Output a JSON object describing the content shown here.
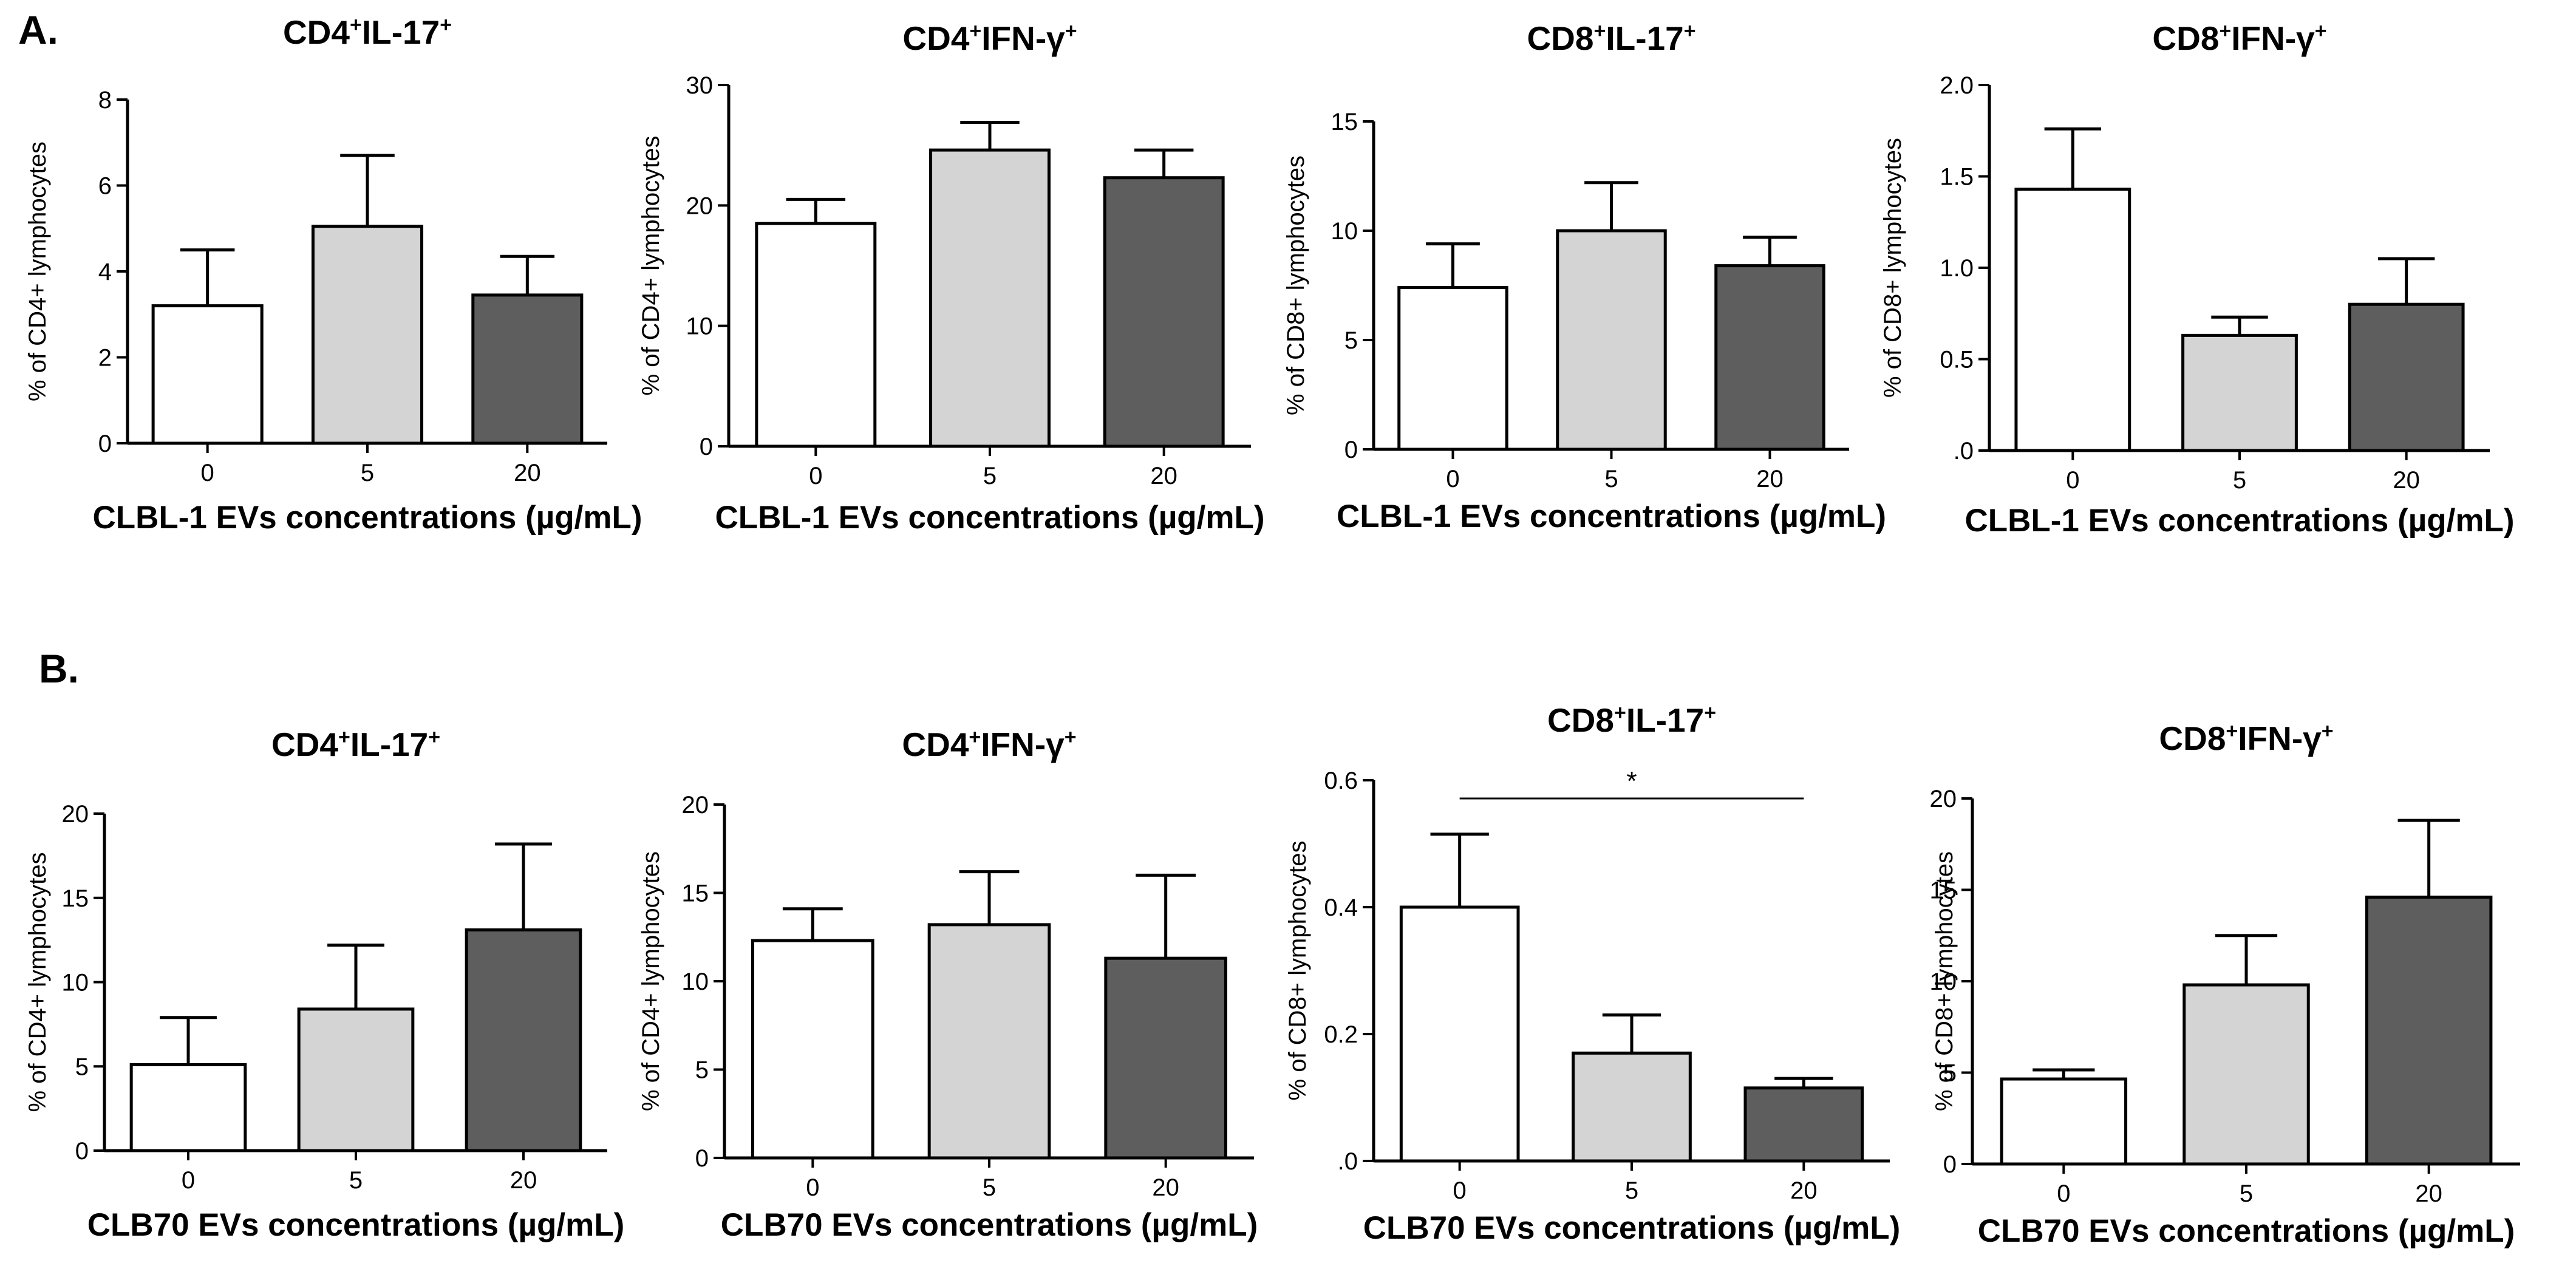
{
  "panels": [
    {
      "letter": "A."
    },
    {
      "letter": "B."
    }
  ],
  "chart_data": [
    {
      "type": "bar",
      "title": "CD4⁺IL-17⁺",
      "title_main": "CD4",
      "title_sup1": "+",
      "title_mid": "IL-17",
      "title_sup2": "+",
      "title_tail": "",
      "xlabel": "CLBL-1 EVs concentrations (µg/mL)",
      "ylabel": "% of CD4+ lymphocytes",
      "categories": [
        "0",
        "5",
        "20"
      ],
      "values": [
        3.2,
        5.05,
        3.45
      ],
      "errors": [
        1.3,
        1.65,
        0.9
      ],
      "ylim": [
        0,
        8
      ],
      "yticks": [
        "0",
        "2",
        "4",
        "6",
        "8"
      ],
      "bar_colors": [
        "#ffffff",
        "#d4d4d4",
        "#5e5e5e"
      ]
    },
    {
      "type": "bar",
      "title": "CD4⁺IFN-γ⁺",
      "title_main": "CD4",
      "title_sup1": "+",
      "title_mid": "IFN-γ",
      "title_sup2": "+",
      "title_tail": "",
      "xlabel": "CLBL-1 EVs concentrations (µg/mL)",
      "ylabel": "% of CD4+ lymphocytes",
      "categories": [
        "0",
        "5",
        "20"
      ],
      "values": [
        18.5,
        24.6,
        22.3
      ],
      "errors": [
        2.0,
        2.3,
        2.3
      ],
      "ylim": [
        0,
        30
      ],
      "yticks": [
        "0",
        "10",
        "20",
        "30"
      ],
      "bar_colors": [
        "#ffffff",
        "#d4d4d4",
        "#5e5e5e"
      ]
    },
    {
      "type": "bar",
      "title": "CD8⁺IL-17⁺",
      "title_main": "CD8",
      "title_sup1": "+",
      "title_mid": "IL-17",
      "title_sup2": "+",
      "title_tail": "",
      "xlabel": "CLBL-1 EVs concentrations (µg/mL)",
      "ylabel": "% of CD8+ lymphocytes",
      "categories": [
        "0",
        "5",
        "20"
      ],
      "values": [
        7.4,
        10.0,
        8.4
      ],
      "errors": [
        2.0,
        2.2,
        1.3
      ],
      "ylim": [
        0,
        15
      ],
      "yticks": [
        "0",
        "5",
        "10",
        "15"
      ],
      "bar_colors": [
        "#ffffff",
        "#d4d4d4",
        "#5e5e5e"
      ]
    },
    {
      "type": "bar",
      "title": "CD8⁺IFN-γ⁺",
      "title_main": "CD8",
      "title_sup1": "+",
      "title_mid": "IFN-γ",
      "title_sup2": "+",
      "title_tail": "",
      "xlabel": "CLBL-1 EVs concentrations (µg/mL)",
      "ylabel": "% of CD8+ lymphocytes",
      "categories": [
        "0",
        "5",
        "20"
      ],
      "values": [
        1.43,
        0.63,
        0.8
      ],
      "errors": [
        0.33,
        0.1,
        0.25
      ],
      "ylim": [
        0,
        2.0
      ],
      "yticks": [
        ".0",
        "0.5",
        "1.0",
        "1.5",
        "2.0"
      ],
      "bar_colors": [
        "#ffffff",
        "#d4d4d4",
        "#5e5e5e"
      ]
    },
    {
      "type": "bar",
      "title": "CD4⁺IL-17⁺",
      "title_main": "CD4",
      "title_sup1": "+",
      "title_mid": "IL-17",
      "title_sup2": "+",
      "title_tail": "",
      "xlabel": "CLB70 EVs concentrations (µg/mL)",
      "ylabel": "% of CD4+ lymphocytes",
      "categories": [
        "0",
        "5",
        "20"
      ],
      "values": [
        5.1,
        8.4,
        13.1
      ],
      "errors": [
        2.8,
        3.8,
        5.1
      ],
      "ylim": [
        0,
        20
      ],
      "yticks": [
        "0",
        "5",
        "10",
        "15",
        "20"
      ],
      "bar_colors": [
        "#ffffff",
        "#d4d4d4",
        "#5e5e5e"
      ]
    },
    {
      "type": "bar",
      "title": "CD4⁺IFN-γ⁺",
      "title_main": "CD4",
      "title_sup1": "+",
      "title_mid": "IFN-γ",
      "title_sup2": "+",
      "title_tail": "",
      "xlabel": "CLB70 EVs concentrations (µg/mL)",
      "ylabel": "% of CD4+ lymphocytes",
      "categories": [
        "0",
        "5",
        "20"
      ],
      "values": [
        12.3,
        13.2,
        11.3
      ],
      "errors": [
        1.8,
        3.0,
        4.7
      ],
      "ylim": [
        0,
        20
      ],
      "yticks": [
        "0",
        "5",
        "10",
        "15",
        "20"
      ],
      "bar_colors": [
        "#ffffff",
        "#d4d4d4",
        "#5e5e5e"
      ]
    },
    {
      "type": "bar",
      "title": "CD8⁺IL-17⁺",
      "title_main": "CD8",
      "title_sup1": "+",
      "title_mid": "IL-17",
      "title_sup2": "+",
      "title_tail": "",
      "xlabel": "CLB70 EVs concentrations (µg/mL)",
      "ylabel": "% of CD8+ lymphocytes",
      "categories": [
        "0",
        "5",
        "20"
      ],
      "values": [
        0.4,
        0.17,
        0.115
      ],
      "errors": [
        0.115,
        0.06,
        0.015
      ],
      "ylim": [
        0,
        0.6
      ],
      "yticks": [
        ".0",
        "0.2",
        "0.4",
        "0.6"
      ],
      "bar_colors": [
        "#ffffff",
        "#d4d4d4",
        "#5e5e5e"
      ],
      "significance": {
        "label": "*",
        "from": "0",
        "to": "20"
      }
    },
    {
      "type": "bar",
      "title": "CD8⁺IFN-γ⁺",
      "title_main": "CD8",
      "title_sup1": "+",
      "title_mid": "IFN-γ",
      "title_sup2": "+",
      "title_tail": "",
      "xlabel": "CLB70 EVs concentrations (µg/mL)",
      "ylabel": "% of CD8+ lymphocytes",
      "categories": [
        "0",
        "5",
        "20"
      ],
      "values": [
        4.65,
        9.8,
        14.6
      ],
      "errors": [
        0.5,
        2.7,
        4.2
      ],
      "ylim": [
        0,
        20
      ],
      "yticks": [
        "0",
        "5",
        "10",
        "15",
        "20"
      ],
      "bar_colors": [
        "#ffffff",
        "#d4d4d4",
        "#5e5e5e"
      ]
    }
  ]
}
